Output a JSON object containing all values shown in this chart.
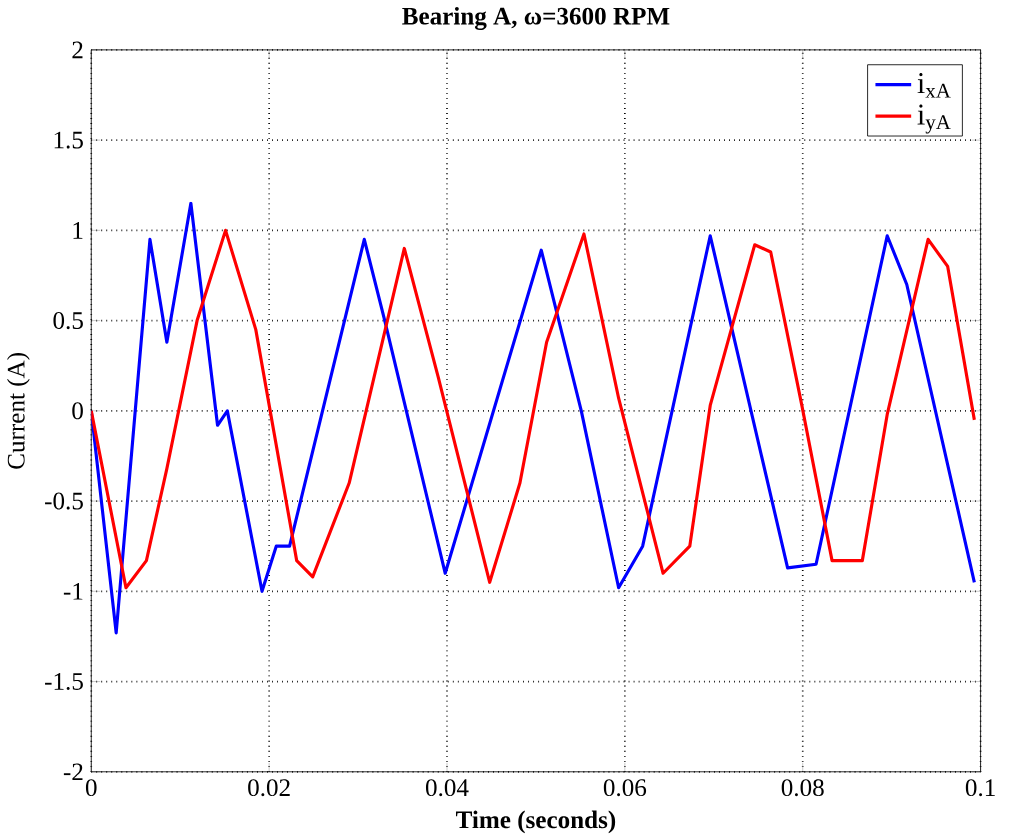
{
  "chart_data": {
    "type": "line",
    "title": "Bearing A, ω=3600 RPM",
    "xlabel": "Time (seconds)",
    "ylabel": "Current (A)",
    "xlim": [
      0,
      0.1
    ],
    "ylim": [
      -2,
      2
    ],
    "xticks": [
      0,
      0.02,
      0.04,
      0.06,
      0.08,
      0.1
    ],
    "yticks": [
      -2,
      -1.5,
      -1,
      -0.5,
      0,
      0.5,
      1,
      1.5,
      2
    ],
    "grid": true,
    "legend": "top right",
    "marker": "none",
    "line_style": "solid",
    "series": [
      {
        "name": "i$_{xA}$",
        "color": "#0000ff",
        "x": [
          0,
          0.0028,
          0.0066,
          0.0085,
          0.0112,
          0.0142,
          0.0153,
          0.0192,
          0.0208,
          0.0223,
          0.0307,
          0.033,
          0.0398,
          0.0506,
          0.0551,
          0.0593,
          0.062,
          0.0696,
          0.0783,
          0.0815,
          0.0895,
          0.0917,
          0.0993
        ],
        "values": [
          0,
          -1.23,
          0.95,
          0.38,
          1.15,
          -0.08,
          0,
          -1.0,
          -0.75,
          -0.75,
          0.95,
          0.5,
          -0.9,
          0.89,
          0,
          -0.98,
          -0.75,
          0.97,
          -0.87,
          -0.85,
          0.97,
          0.7,
          -0.95
        ]
      },
      {
        "name": "i$_{yA}$",
        "color": "#ff0000",
        "x": [
          0,
          0.0039,
          0.0062,
          0.0085,
          0.0119,
          0.0151,
          0.0185,
          0.0231,
          0.0249,
          0.029,
          0.0352,
          0.039,
          0.0448,
          0.0482,
          0.0512,
          0.0554,
          0.0593,
          0.0643,
          0.0673,
          0.0696,
          0.0746,
          0.0764,
          0.0799,
          0.0833,
          0.0867,
          0.0895,
          0.0941,
          0.0963,
          0.0993
        ],
        "values": [
          0,
          -0.98,
          -0.83,
          -0.32,
          0.5,
          1.0,
          0.45,
          -0.83,
          -0.92,
          -0.4,
          0.9,
          0.19,
          -0.95,
          -0.4,
          0.38,
          0.98,
          0.07,
          -0.9,
          -0.75,
          0.03,
          0.92,
          0.88,
          0.03,
          -0.83,
          -0.83,
          -0.02,
          0.95,
          0.8,
          -0.05
        ]
      }
    ]
  }
}
